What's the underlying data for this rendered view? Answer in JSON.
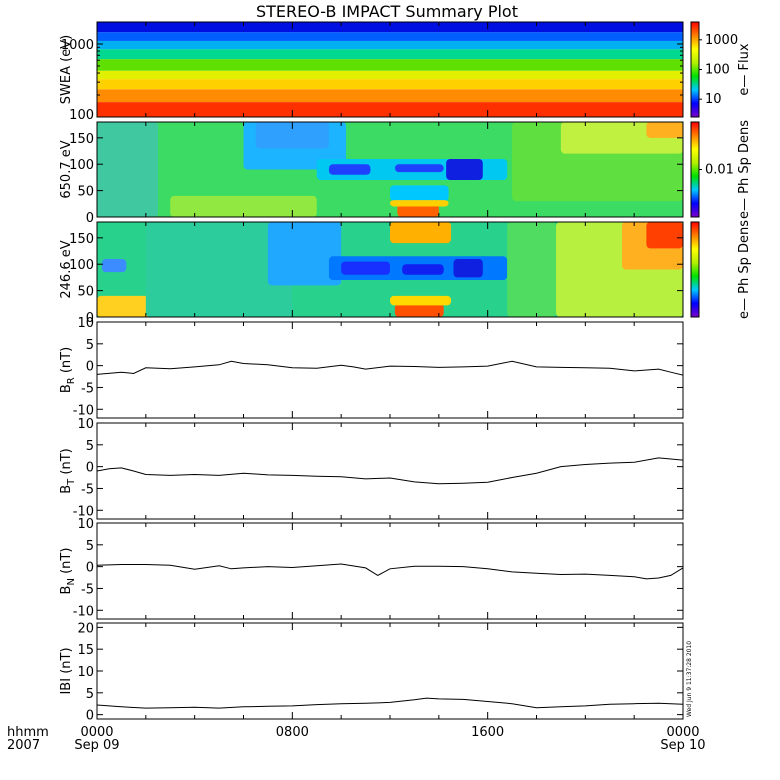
{
  "chart_data": [
    {
      "panel_id": "swea",
      "type": "heatmap",
      "title": "STEREO-B IMPACT Summary Plot",
      "ylabel": "SWEA (eV)",
      "yscale": "log",
      "ylim": [
        100,
        2000
      ],
      "yticks": [
        "1000",
        "100"
      ],
      "colorbar": {
        "label": "e—  Flux",
        "scale": "log",
        "ticks": [
          "1000",
          "100",
          "10"
        ]
      },
      "colormap": [
        "#7a00c8",
        "#0000ff",
        "#00c8ff",
        "#00e000",
        "#b4f000",
        "#ffff00",
        "#ff8000",
        "#ff0000"
      ],
      "bands": [
        {
          "from_eV": 100,
          "to_eV": 160,
          "color": "#ff3000"
        },
        {
          "from_eV": 160,
          "to_eV": 240,
          "color": "#ff8c00"
        },
        {
          "from_eV": 240,
          "to_eV": 330,
          "color": "#ffd000"
        },
        {
          "from_eV": 330,
          "to_eV": 430,
          "color": "#e0f000"
        },
        {
          "from_eV": 430,
          "to_eV": 620,
          "color": "#60e000"
        },
        {
          "from_eV": 620,
          "to_eV": 850,
          "color": "#00d890"
        },
        {
          "from_eV": 850,
          "to_eV": 1100,
          "color": "#00b0f0"
        },
        {
          "from_eV": 1100,
          "to_eV": 1450,
          "color": "#0060ff"
        },
        {
          "from_eV": 1450,
          "to_eV": 2000,
          "color": "#0010e0"
        }
      ]
    },
    {
      "panel_id": "pad650",
      "type": "heatmap",
      "ylabel": "650.7 eV",
      "ylim": [
        0,
        180
      ],
      "yticks": [
        "150",
        "100",
        "50",
        "0"
      ],
      "ytick_values": [
        150,
        100,
        50,
        0
      ],
      "colorbar": {
        "label": "e—  Ph Sp Dens",
        "ticks": [
          "0.01"
        ]
      },
      "background": "#3cdc64",
      "regions": [
        {
          "t0": 0,
          "t1": 2.5,
          "p0": 0,
          "p1": 180,
          "color": "#40c8a0"
        },
        {
          "t0": 6,
          "t1": 10.2,
          "p0": 90,
          "p1": 180,
          "color": "#1cb4ff"
        },
        {
          "t0": 6.5,
          "t1": 9.5,
          "p0": 130,
          "p1": 180,
          "color": "#30a0ff"
        },
        {
          "t0": 9,
          "t1": 16.8,
          "p0": 70,
          "p1": 110,
          "color": "#00c8f0"
        },
        {
          "t0": 9.5,
          "t1": 11.2,
          "p0": 80,
          "p1": 100,
          "color": "#2040ff"
        },
        {
          "t0": 12.2,
          "t1": 14.2,
          "p0": 85,
          "p1": 100,
          "color": "#2040ff"
        },
        {
          "t0": 14.3,
          "t1": 15.8,
          "p0": 70,
          "p1": 110,
          "color": "#1020e0"
        },
        {
          "t0": 12,
          "t1": 14.4,
          "p0": 30,
          "p1": 60,
          "color": "#00c8ff"
        },
        {
          "t0": 12.3,
          "t1": 14.0,
          "p0": 0,
          "p1": 25,
          "color": "#ff6000"
        },
        {
          "t0": 12.0,
          "t1": 14.4,
          "p0": 20,
          "p1": 32,
          "color": "#ffd000"
        },
        {
          "t0": 3,
          "t1": 9,
          "p0": 0,
          "p1": 40,
          "color": "#90e840"
        },
        {
          "t0": 17,
          "t1": 24,
          "p0": 30,
          "p1": 180,
          "color": "#60e040"
        },
        {
          "t0": 19,
          "t1": 24,
          "p0": 120,
          "p1": 180,
          "color": "#c0f040"
        },
        {
          "t0": 22.5,
          "t1": 24,
          "p0": 150,
          "p1": 180,
          "color": "#ffb020"
        }
      ]
    },
    {
      "panel_id": "pad246",
      "type": "heatmap",
      "ylabel": "246.6 eV",
      "ylim": [
        0,
        180
      ],
      "yticks": [
        "150",
        "100",
        "50",
        "0"
      ],
      "ytick_values": [
        150,
        100,
        50,
        0
      ],
      "colorbar": {
        "label": "e—  Ph Sp Dens",
        "ticks": []
      },
      "background": "#28d28c",
      "regions": [
        {
          "t0": 0,
          "t1": 2.5,
          "p0": 0,
          "p1": 40,
          "color": "#ffd020"
        },
        {
          "t0": 0.2,
          "t1": 1.2,
          "p0": 85,
          "p1": 110,
          "color": "#3c8cff"
        },
        {
          "t0": 2,
          "t1": 8,
          "p0": 0,
          "p1": 180,
          "color": "#2ccc9c"
        },
        {
          "t0": 7,
          "t1": 10,
          "p0": 60,
          "p1": 180,
          "color": "#20a8ff"
        },
        {
          "t0": 9.5,
          "t1": 16.8,
          "p0": 70,
          "p1": 115,
          "color": "#0078ff"
        },
        {
          "t0": 10,
          "t1": 12,
          "p0": 80,
          "p1": 105,
          "color": "#1830ff"
        },
        {
          "t0": 12.5,
          "t1": 14.2,
          "p0": 80,
          "p1": 100,
          "color": "#1020f0"
        },
        {
          "t0": 14.6,
          "t1": 15.8,
          "p0": 75,
          "p1": 110,
          "color": "#1020e0"
        },
        {
          "t0": 12,
          "t1": 14.5,
          "p0": 140,
          "p1": 180,
          "color": "#ffb000"
        },
        {
          "t0": 12.2,
          "t1": 14.2,
          "p0": 0,
          "p1": 25,
          "color": "#ff5000"
        },
        {
          "t0": 12.0,
          "t1": 14.5,
          "p0": 22,
          "p1": 40,
          "color": "#ffd800"
        },
        {
          "t0": 16.8,
          "t1": 18.8,
          "p0": 0,
          "p1": 180,
          "color": "#50dc60"
        },
        {
          "t0": 18.8,
          "t1": 24,
          "p0": 0,
          "p1": 180,
          "color": "#b8f040"
        },
        {
          "t0": 21.5,
          "t1": 24,
          "p0": 90,
          "p1": 180,
          "color": "#ffb020"
        },
        {
          "t0": 22.5,
          "t1": 24,
          "p0": 130,
          "p1": 180,
          "color": "#ff4000"
        }
      ]
    },
    {
      "panel_id": "br",
      "type": "line",
      "ylabel_main": "B",
      "ylabel_sub": "R",
      "ylabel_unit": " (nT)",
      "ylim": [
        -12,
        10
      ],
      "yticks": [
        "10",
        "5",
        "0",
        "-5",
        "-10"
      ],
      "ytick_values": [
        10,
        5,
        0,
        -5,
        -10
      ],
      "x": [
        0,
        1,
        1.5,
        2,
        3,
        4,
        5,
        5.5,
        6,
        7,
        8,
        9,
        10,
        10.5,
        11,
        12,
        13,
        14,
        15,
        16,
        17,
        18,
        19,
        20,
        21,
        22,
        23,
        23.5,
        24
      ],
      "values": [
        -2,
        -1.5,
        -1.8,
        -0.5,
        -0.7,
        -0.3,
        0.2,
        1.0,
        0.5,
        0.2,
        -0.5,
        -0.6,
        0.1,
        -0.3,
        -0.8,
        -0.1,
        -0.2,
        -0.4,
        -0.3,
        -0.1,
        1.0,
        -0.3,
        -0.4,
        -0.5,
        -0.6,
        -1.2,
        -0.8,
        -1.5,
        -2.2
      ]
    },
    {
      "panel_id": "bt",
      "type": "line",
      "ylabel_main": "B",
      "ylabel_sub": "T",
      "ylabel_unit": " (nT)",
      "ylim": [
        -12,
        10
      ],
      "yticks": [
        "10",
        "5",
        "0",
        "-5",
        "-10"
      ],
      "ytick_values": [
        10,
        5,
        0,
        -5,
        -10
      ],
      "x": [
        0,
        0.5,
        1,
        1.5,
        2,
        3,
        4,
        5,
        6,
        7,
        8,
        9,
        10,
        11,
        12,
        13,
        14,
        15,
        16,
        17,
        18,
        19,
        20,
        21,
        22,
        23,
        24
      ],
      "values": [
        -1,
        -0.5,
        -0.3,
        -1.0,
        -1.8,
        -2.0,
        -1.8,
        -2.0,
        -1.5,
        -1.9,
        -2.0,
        -2.2,
        -2.3,
        -2.8,
        -2.6,
        -3.5,
        -3.9,
        -3.8,
        -3.6,
        -2.5,
        -1.5,
        0,
        0.5,
        0.8,
        1.0,
        2.0,
        1.5
      ]
    },
    {
      "panel_id": "bn",
      "type": "line",
      "ylabel_main": "B",
      "ylabel_sub": "N",
      "ylabel_unit": " (nT)",
      "ylim": [
        -12,
        10
      ],
      "yticks": [
        "10",
        "5",
        "0",
        "-5",
        "-10"
      ],
      "ytick_values": [
        10,
        5,
        0,
        -5,
        -10
      ],
      "x": [
        0,
        1,
        2,
        3,
        4,
        5,
        5.5,
        6,
        7,
        8,
        9,
        10,
        11,
        11.5,
        12,
        13,
        14,
        15,
        16,
        17,
        18,
        19,
        20,
        21,
        22,
        22.5,
        23,
        23.5,
        24
      ],
      "values": [
        0.3,
        0.5,
        0.5,
        0.3,
        -0.6,
        0.2,
        -0.5,
        -0.3,
        0.0,
        -0.2,
        0.2,
        0.6,
        -0.3,
        -2.0,
        -0.5,
        0.1,
        0.1,
        0.0,
        -0.5,
        -1.2,
        -1.5,
        -1.8,
        -1.7,
        -2.0,
        -2.3,
        -2.8,
        -2.6,
        -2.0,
        -0.3
      ]
    },
    {
      "panel_id": "bmag",
      "type": "line",
      "ylabel_main": "IBI",
      "ylabel_sub": "",
      "ylabel_unit": " (nT)",
      "ylim": [
        -1,
        21
      ],
      "yticks": [
        "20",
        "15",
        "10",
        "5",
        "0"
      ],
      "ytick_values": [
        20,
        15,
        10,
        5,
        0
      ],
      "stamp": "Wed Jun  9 11:37:28 2010",
      "x": [
        0,
        1,
        2,
        3,
        4,
        5,
        6,
        7,
        8,
        9,
        10,
        11,
        12,
        13,
        13.5,
        14,
        15,
        16,
        17,
        18,
        19,
        20,
        21,
        22,
        23,
        24
      ],
      "values": [
        2.2,
        1.8,
        1.5,
        1.6,
        1.7,
        1.5,
        1.8,
        1.9,
        2.0,
        2.3,
        2.5,
        2.6,
        2.8,
        3.4,
        3.8,
        3.6,
        3.5,
        3.0,
        2.5,
        1.6,
        1.8,
        2.0,
        2.4,
        2.5,
        2.6,
        2.4
      ]
    }
  ],
  "time_axis": {
    "row1_label": "hhmm",
    "row2_label": "2007",
    "ticks": [
      {
        "t": 0,
        "top": "0000",
        "bottom": "Sep 09"
      },
      {
        "t": 8,
        "top": "0800",
        "bottom": ""
      },
      {
        "t": 16,
        "top": "1600",
        "bottom": ""
      },
      {
        "t": 24,
        "top": "0000",
        "bottom": "Sep 10"
      }
    ]
  }
}
